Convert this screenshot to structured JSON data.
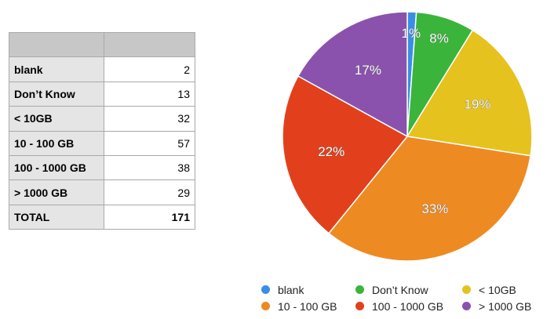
{
  "table": {
    "header": [
      "",
      ""
    ],
    "rows": [
      {
        "label": "blank",
        "value": "2"
      },
      {
        "label": "Don’t Know",
        "value": "13"
      },
      {
        "label": "< 10GB",
        "value": "32"
      },
      {
        "label": "10 - 100 GB",
        "value": "57"
      },
      {
        "label": "100 - 1000 GB",
        "value": "38"
      },
      {
        "label": "> 1000 GB",
        "value": "29"
      }
    ],
    "total": {
      "label": "TOTAL",
      "value": "171"
    }
  },
  "chart_data": {
    "type": "pie",
    "title": "",
    "categories": [
      "blank",
      "Don’t Know",
      "< 10GB",
      "10 - 100 GB",
      "100 - 1000 GB",
      "> 1000 GB"
    ],
    "values": [
      2,
      13,
      32,
      57,
      38,
      29
    ],
    "percent_labels": [
      "1%",
      "8%",
      "19%",
      "33%",
      "22%",
      "17%"
    ],
    "colors": [
      "#3a8ee6",
      "#3bb43b",
      "#e6c21e",
      "#ee8a22",
      "#e2401c",
      "#8a52ad"
    ],
    "legend_position": "bottom"
  },
  "legend": {
    "items": [
      {
        "label": "blank",
        "color": "#3a8ee6"
      },
      {
        "label": "Don’t Know",
        "color": "#3bb43b"
      },
      {
        "label": "< 10GB",
        "color": "#e6c21e"
      },
      {
        "label": "10 - 100 GB",
        "color": "#ee8a22"
      },
      {
        "label": "100 - 1000 GB",
        "color": "#e2401c"
      },
      {
        "label": "> 1000 GB",
        "color": "#8a52ad"
      }
    ]
  }
}
